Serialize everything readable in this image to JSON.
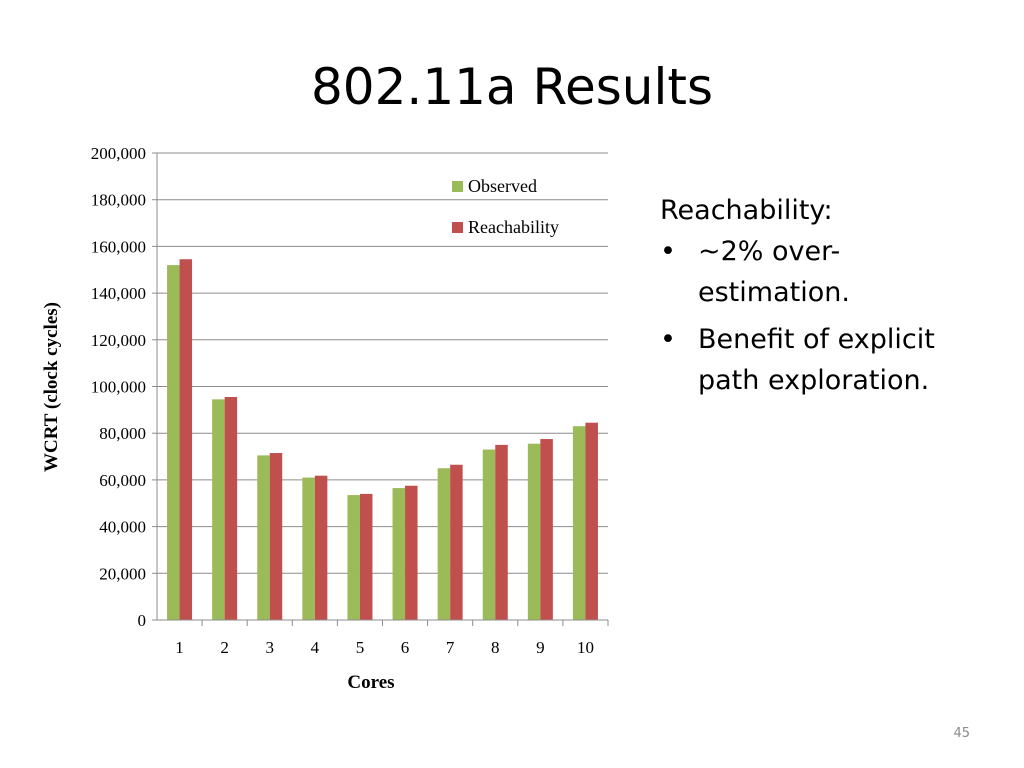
{
  "slide": {
    "title": "802.11a Results",
    "page_number": "45"
  },
  "text_panel": {
    "heading": "Reachability:",
    "bullets": [
      "~2% over-estimation.",
      "Benefit of explicit path exploration."
    ],
    "bullet_glyph": "•"
  },
  "colors": {
    "observed": "#9bbb59",
    "reachability": "#c0504d",
    "gridline": "#8c8c8c"
  },
  "chart_data": {
    "type": "bar",
    "title": "",
    "xlabel": "Cores",
    "ylabel": "WCRT (clock cycles)",
    "categories": [
      "1",
      "2",
      "3",
      "4",
      "5",
      "6",
      "7",
      "8",
      "9",
      "10"
    ],
    "series": [
      {
        "name": "Observed",
        "values": [
          152000,
          94500,
          70500,
          61000,
          53500,
          56500,
          65000,
          73000,
          75500,
          83000
        ]
      },
      {
        "name": "Reachability",
        "values": [
          154500,
          95500,
          71500,
          61800,
          54000,
          57500,
          66500,
          75000,
          77500,
          84500
        ]
      }
    ],
    "ylim": [
      0,
      200000
    ],
    "y_ticks": [
      "0",
      "20,000",
      "40,000",
      "60,000",
      "80,000",
      "100,000",
      "120,000",
      "140,000",
      "160,000",
      "180,000",
      "200,000"
    ],
    "grid": true,
    "legend_position": "top-right"
  }
}
